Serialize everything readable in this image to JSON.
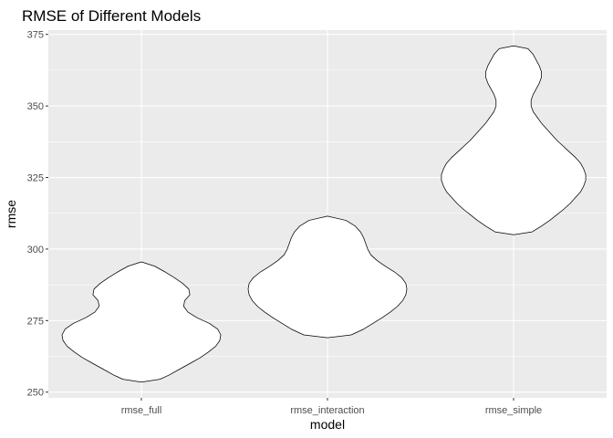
{
  "chart_data": {
    "type": "violin",
    "title": "RMSE of Different Models",
    "xlabel": "model",
    "ylabel": "rmse",
    "categories": [
      "rmse_full",
      "rmse_interaction",
      "rmse_simple"
    ],
    "y_ticks": [
      250,
      275,
      300,
      325,
      350,
      375
    ],
    "ylim": [
      248,
      376.5
    ],
    "grid": true,
    "colors": {
      "panel_bg": "#ebebeb",
      "grid_major": "#ffffff",
      "violin_fill": "#ffffff",
      "violin_stroke": "#000000",
      "tick_text": "#4d4d4d"
    },
    "violins": [
      {
        "category": "rmse_full",
        "min": 253.5,
        "max": 295.5,
        "half_width_profile": [
          [
            253.5,
            0.0
          ],
          [
            254.5,
            0.9
          ],
          [
            256,
            1.35
          ],
          [
            258,
            1.85
          ],
          [
            260,
            2.35
          ],
          [
            262,
            2.85
          ],
          [
            264,
            3.25
          ],
          [
            266,
            3.6
          ],
          [
            268,
            3.8
          ],
          [
            270,
            3.85
          ],
          [
            272,
            3.7
          ],
          [
            274,
            3.3
          ],
          [
            276,
            2.7
          ],
          [
            278,
            2.25
          ],
          [
            280,
            2.05
          ],
          [
            282,
            2.1
          ],
          [
            284,
            2.35
          ],
          [
            286,
            2.3
          ],
          [
            288,
            2.0
          ],
          [
            290,
            1.6
          ],
          [
            292,
            1.15
          ],
          [
            294,
            0.65
          ],
          [
            295.5,
            0.0
          ]
        ]
      },
      {
        "category": "rmse_interaction",
        "min": 269.0,
        "max": 311.5,
        "half_width_profile": [
          [
            269,
            0.0
          ],
          [
            270,
            1.15
          ],
          [
            272,
            1.75
          ],
          [
            274,
            2.2
          ],
          [
            276,
            2.65
          ],
          [
            278,
            3.05
          ],
          [
            280,
            3.4
          ],
          [
            282,
            3.65
          ],
          [
            284,
            3.8
          ],
          [
            286,
            3.85
          ],
          [
            288,
            3.8
          ],
          [
            290,
            3.6
          ],
          [
            292,
            3.25
          ],
          [
            294,
            2.8
          ],
          [
            296,
            2.4
          ],
          [
            298,
            2.1
          ],
          [
            300,
            1.95
          ],
          [
            302,
            1.85
          ],
          [
            304,
            1.75
          ],
          [
            306,
            1.6
          ],
          [
            308,
            1.35
          ],
          [
            310,
            0.9
          ],
          [
            311.5,
            0.0
          ]
        ]
      },
      {
        "category": "rmse_simple",
        "min": 305.0,
        "max": 371.0,
        "half_width_profile": [
          [
            305,
            0.0
          ],
          [
            306,
            0.9
          ],
          [
            308,
            1.35
          ],
          [
            310,
            1.75
          ],
          [
            312,
            2.1
          ],
          [
            314,
            2.45
          ],
          [
            316,
            2.75
          ],
          [
            318,
            3.0
          ],
          [
            320,
            3.25
          ],
          [
            322,
            3.4
          ],
          [
            324,
            3.5
          ],
          [
            326,
            3.5
          ],
          [
            328,
            3.4
          ],
          [
            330,
            3.25
          ],
          [
            332,
            3.0
          ],
          [
            334,
            2.7
          ],
          [
            336,
            2.4
          ],
          [
            338,
            2.1
          ],
          [
            340,
            1.85
          ],
          [
            342,
            1.6
          ],
          [
            344,
            1.35
          ],
          [
            346,
            1.15
          ],
          [
            348,
            0.95
          ],
          [
            350,
            0.85
          ],
          [
            352,
            0.85
          ],
          [
            354,
            0.95
          ],
          [
            356,
            1.1
          ],
          [
            358,
            1.25
          ],
          [
            360,
            1.35
          ],
          [
            362,
            1.35
          ],
          [
            364,
            1.25
          ],
          [
            366,
            1.1
          ],
          [
            368,
            0.95
          ],
          [
            370,
            0.7
          ],
          [
            371,
            0.0
          ]
        ]
      }
    ]
  }
}
